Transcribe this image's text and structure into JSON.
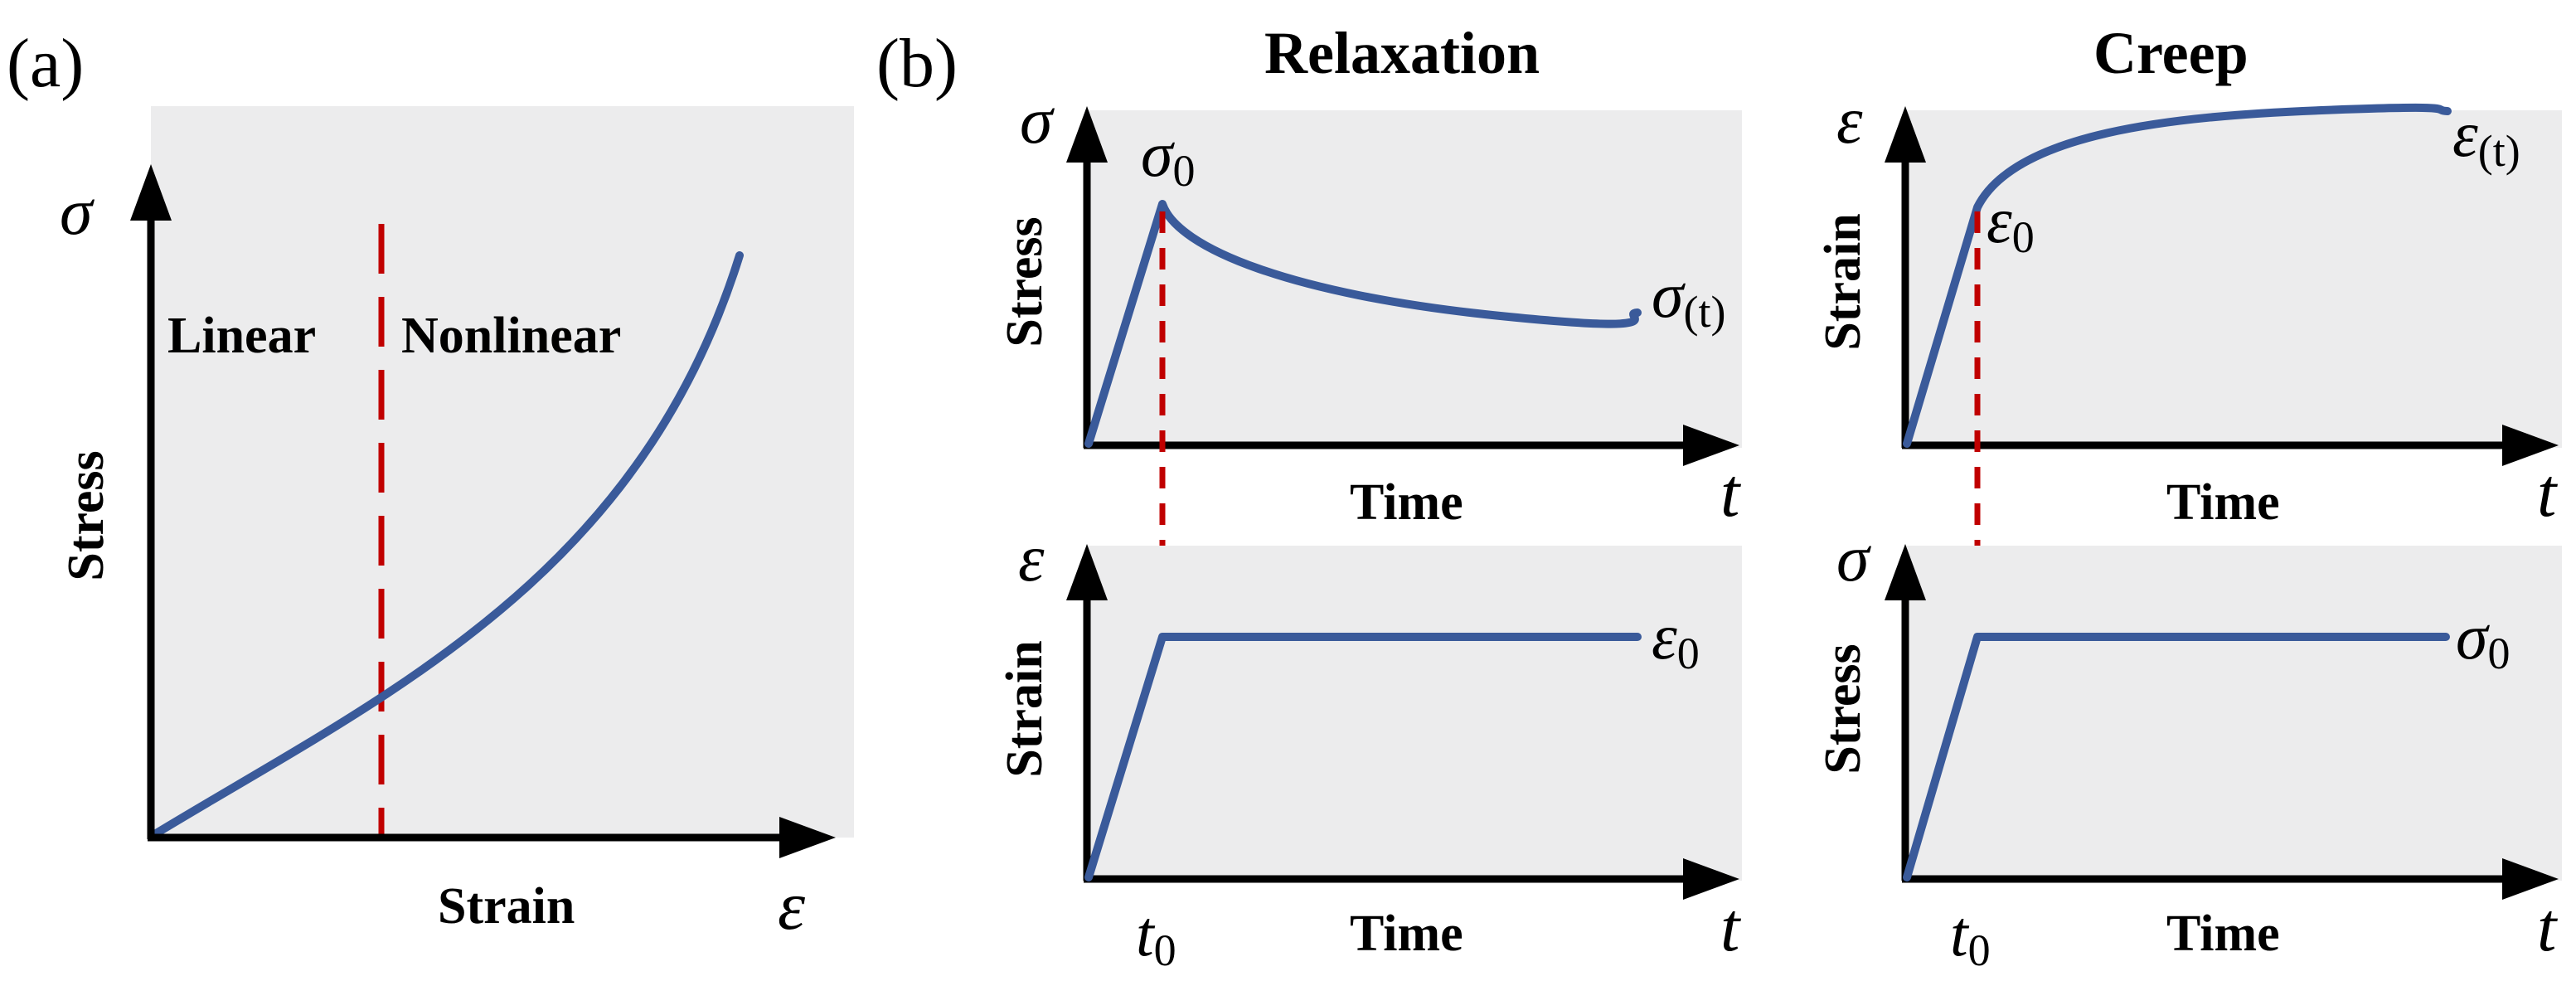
{
  "colors": {
    "curve": "#3a5a9a",
    "divider": "#c00000",
    "plot_background": "#ececed",
    "axis": "#000000"
  },
  "panel_a": {
    "label": "(a)",
    "y_symbol": "σ",
    "y_label": "Stress",
    "x_symbol": "ε",
    "x_label": "Strain",
    "region_left": "Linear",
    "region_right": "Nonlinear"
  },
  "panel_b": {
    "label": "(b)",
    "relaxation": {
      "title": "Relaxation",
      "top": {
        "y_symbol": "σ",
        "y_label": "Stress",
        "x_symbol": "t",
        "x_label": "Time",
        "peak_label": {
          "base": "σ",
          "sub": "0"
        },
        "end_label": {
          "base": "σ",
          "sub": "(t)"
        }
      },
      "bottom": {
        "y_symbol": "ε",
        "y_label": "Strain",
        "x_symbol": "t",
        "x_label": "Time",
        "level_label": {
          "base": "ε",
          "sub": "0"
        },
        "tick_label": {
          "base": "t",
          "sub": "0"
        }
      }
    },
    "creep": {
      "title": "Creep",
      "top": {
        "y_symbol": "ε",
        "y_label": "Strain",
        "x_symbol": "t",
        "x_label": "Time",
        "knee_label": {
          "base": "ε",
          "sub": "0"
        },
        "end_label": {
          "base": "ε",
          "sub": "(t)"
        }
      },
      "bottom": {
        "y_symbol": "σ",
        "y_label": "Stress",
        "x_symbol": "t",
        "x_label": "Time",
        "level_label": {
          "base": "σ",
          "sub": "0"
        },
        "tick_label": {
          "base": "t",
          "sub": "0"
        }
      }
    }
  }
}
